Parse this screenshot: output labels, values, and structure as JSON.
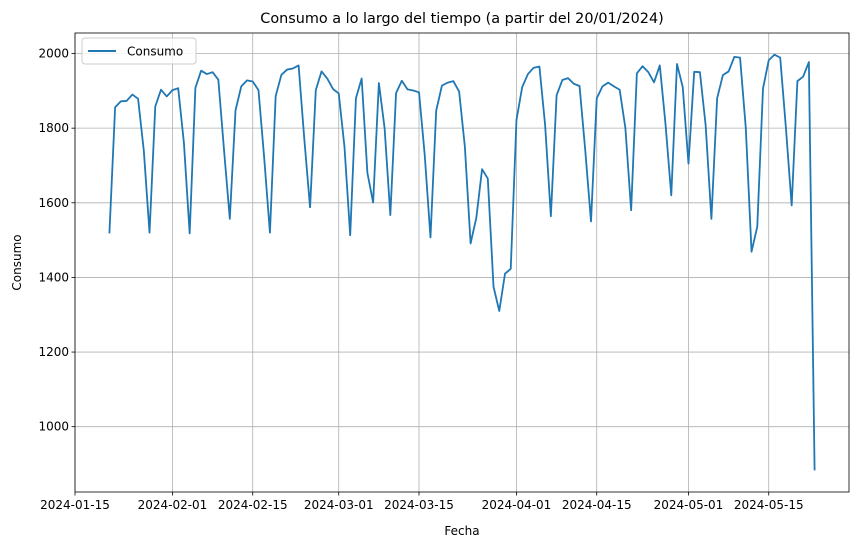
{
  "chart_data": {
    "type": "line",
    "title": "Consumo a lo largo del tiempo (a partir del 20/01/2024)",
    "xlabel": "Fecha",
    "ylabel": "Consumo",
    "x_ticks": [
      "2024-01-15",
      "2024-02-01",
      "2024-02-15",
      "2024-03-01",
      "2024-03-15",
      "2024-04-01",
      "2024-04-15",
      "2024-05-01",
      "2024-05-15"
    ],
    "y_ticks": [
      1000,
      1200,
      1400,
      1600,
      1800,
      2000
    ],
    "xlim": [
      "2024-01-15",
      "2024-05-29"
    ],
    "ylim": [
      825,
      2055
    ],
    "grid": true,
    "legend": "top-left",
    "color": "#1f77b4",
    "series": [
      {
        "name": "Consumo",
        "start_date": "2024-01-21",
        "values": [
          1518,
          1856,
          1872,
          1873,
          1890,
          1879,
          1740,
          1520,
          1858,
          1903,
          1885,
          1902,
          1907,
          1760,
          1518,
          1908,
          1954,
          1945,
          1950,
          1930,
          1740,
          1557,
          1848,
          1912,
          1928,
          1925,
          1902,
          1720,
          1520,
          1886,
          1943,
          1957,
          1960,
          1968,
          1770,
          1588,
          1902,
          1952,
          1933,
          1905,
          1893,
          1750,
          1513,
          1880,
          1933,
          1680,
          1601,
          1921,
          1800,
          1567,
          1894,
          1927,
          1904,
          1901,
          1896,
          1728,
          1507,
          1847,
          1914,
          1922,
          1926,
          1898,
          1750,
          1491,
          1560,
          1690,
          1665,
          1375,
          1310,
          1410,
          1423,
          1822,
          1910,
          1945,
          1962,
          1965,
          1808,
          1564,
          1888,
          1929,
          1934,
          1919,
          1913,
          1740,
          1550,
          1880,
          1912,
          1922,
          1912,
          1903,
          1800,
          1580,
          1947,
          1966,
          1950,
          1923,
          1968,
          1810,
          1620,
          1972,
          1910,
          1705,
          1951,
          1950,
          1807,
          1557,
          1880,
          1942,
          1952,
          1991,
          1989,
          1800,
          1469,
          1536,
          1906,
          1982,
          1997,
          1989,
          1800,
          1593,
          1926,
          1938,
          1977,
          883
        ]
      }
    ]
  }
}
